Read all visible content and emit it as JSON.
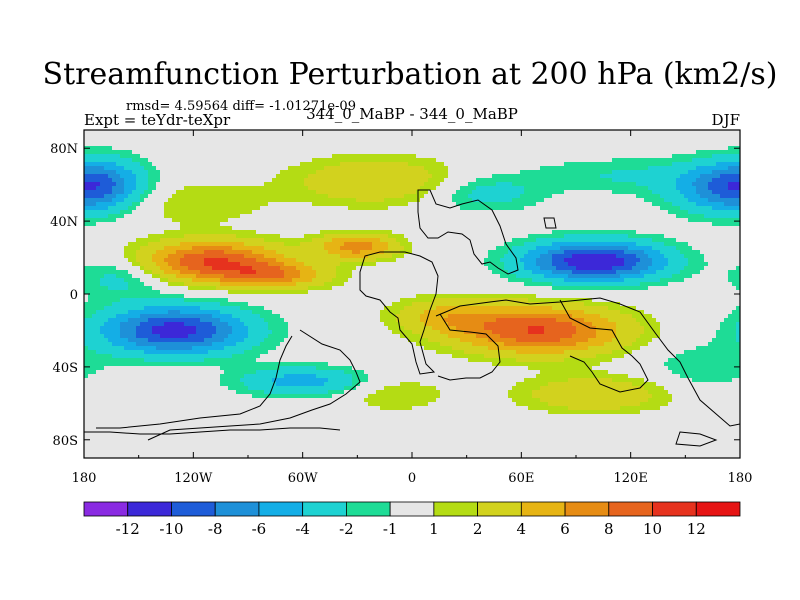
{
  "chart_data": {
    "type": "heatmap",
    "title": "Streamfunction Perturbation at 200 hPa (km2/s)",
    "subtitle_left_top": "rmsd= 4.59564 diff= -1.01271e-09",
    "subtitle_left": "Expt = teYdr-teXpr",
    "subtitle_center": "344_0_MaBP - 344_0_MaBP",
    "subtitle_right": "DJF",
    "x_ticks": [
      "180",
      "120W",
      "60W",
      "0",
      "60E",
      "120E",
      "180"
    ],
    "y_ticks": [
      "80N",
      "40N",
      "0",
      "40S",
      "80S"
    ],
    "xlim": [
      -180,
      180
    ],
    "ylim": [
      -90,
      90
    ],
    "colorbar_labels": [
      "-12",
      "-10",
      "-8",
      "-6",
      "-4",
      "-2",
      "-1",
      "1",
      "2",
      "4",
      "6",
      "8",
      "10",
      "12"
    ],
    "colorbar_colors": [
      "#8A2BE2",
      "#3C28D8",
      "#1E5CD8",
      "#1E90D8",
      "#14AEE6",
      "#1ED2D2",
      "#1EDC96",
      "#E6E6E6",
      "#B4DC14",
      "#D2D21E",
      "#E6B414",
      "#E68C14",
      "#E6641E",
      "#E6321E",
      "#E61414"
    ],
    "features": [
      {
        "lon": -110,
        "lat": 18,
        "amp": 10,
        "slon": 40,
        "slat": 11
      },
      {
        "lon": -75,
        "lat": 10,
        "amp": 6,
        "slon": 30,
        "slat": 7
      },
      {
        "lon": -30,
        "lat": 26,
        "amp": 7,
        "slon": 22,
        "slat": 7
      },
      {
        "lon": -130,
        "lat": -20,
        "amp": -11,
        "slon": 40,
        "slat": 13
      },
      {
        "lon": 100,
        "lat": 18,
        "amp": -12,
        "slon": 38,
        "slat": 11
      },
      {
        "lon": 70,
        "lat": -20,
        "amp": 10,
        "slon": 45,
        "slat": 13
      },
      {
        "lon": 20,
        "lat": -12,
        "amp": 4,
        "slon": 30,
        "slat": 10
      },
      {
        "lon": -170,
        "lat": 60,
        "amp": -6,
        "slon": 25,
        "slat": 14
      },
      {
        "lon": 170,
        "lat": 58,
        "amp": -6,
        "slon": 30,
        "slat": 14
      },
      {
        "lon": -20,
        "lat": 62,
        "amp": 4,
        "slon": 45,
        "slat": 13
      },
      {
        "lon": 110,
        "lat": 65,
        "amp": -2,
        "slon": 50,
        "slat": 10
      },
      {
        "lon": -60,
        "lat": -48,
        "amp": -5,
        "slon": 35,
        "slat": 8
      },
      {
        "lon": 100,
        "lat": -55,
        "amp": 4,
        "slon": 40,
        "slat": 10
      },
      {
        "lon": 40,
        "lat": 55,
        "amp": -3,
        "slon": 30,
        "slat": 10
      },
      {
        "lon": -120,
        "lat": 50,
        "amp": 2,
        "slon": 40,
        "slat": 12
      },
      {
        "lon": -160,
        "lat": 10,
        "amp": -3,
        "slon": 25,
        "slat": 12
      },
      {
        "lon": 160,
        "lat": -40,
        "amp": -2,
        "slon": 30,
        "slat": 12
      },
      {
        "lon": -10,
        "lat": -55,
        "amp": 2,
        "slon": 30,
        "slat": 10
      }
    ]
  }
}
